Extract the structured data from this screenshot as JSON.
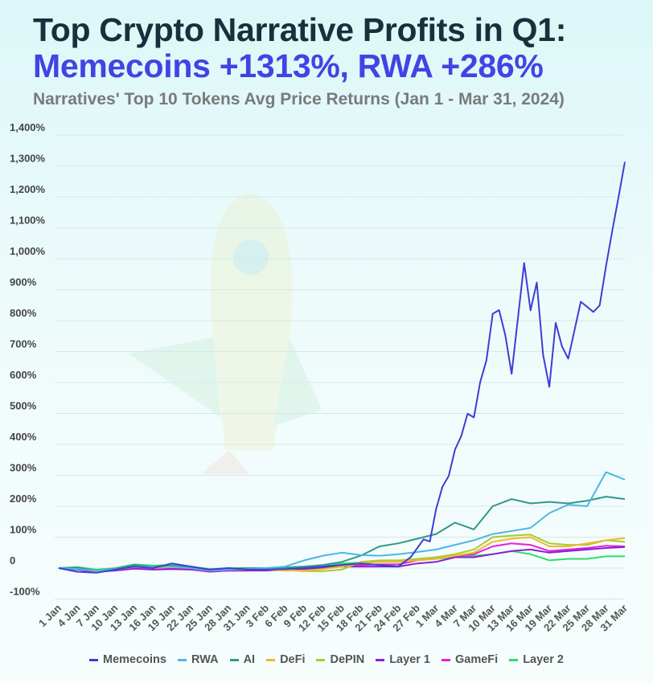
{
  "header": {
    "title_line1": "Top Crypto Narrative Profits in Q1:",
    "title_line2": "Memecoins +1313%, RWA +286%",
    "subtitle": "Narratives' Top 10 Tokens Avg Price Returns (Jan 1 - Mar 31, 2024)"
  },
  "colors": {
    "title": "#17303c",
    "highlight": "#4343e4",
    "subtitle": "#7a7a7a",
    "grid": "#d6e8ea"
  },
  "chart_data": {
    "type": "line",
    "title": "",
    "xlabel": "",
    "ylabel": "",
    "ylim": [
      -100,
      1400
    ],
    "yticks": [
      "-100%",
      "0",
      "100%",
      "200%",
      "300%",
      "400%",
      "500%",
      "600%",
      "700%",
      "800%",
      "900%",
      "1,000%",
      "1,100%",
      "1,200%",
      "1,300%",
      "1,400%"
    ],
    "ytick_values": [
      -100,
      0,
      100,
      200,
      300,
      400,
      500,
      600,
      700,
      800,
      900,
      1000,
      1100,
      1200,
      1300,
      1400
    ],
    "xticks": [
      "1 Jan",
      "4 Jan",
      "7 Jan",
      "10 Jan",
      "13 Jan",
      "16 Jan",
      "19 Jan",
      "22 Jan",
      "25 Jan",
      "28 Jan",
      "31 Jan",
      "3 Feb",
      "6 Feb",
      "9 Feb",
      "12 Feb",
      "15 Feb",
      "18 Feb",
      "21 Feb",
      "24 Feb",
      "27 Feb",
      "1 Mar",
      "4 Mar",
      "7 Mar",
      "10 Mar",
      "13 Mar",
      "16 Mar",
      "19 Mar",
      "22 Mar",
      "25 Mar",
      "28 Mar",
      "31 Mar"
    ],
    "grid": true,
    "legend_position": "bottom",
    "series": [
      {
        "name": "Memecoins",
        "color": "#3d3dd6",
        "x": [
          "1 Jan",
          "4 Jan",
          "7 Jan",
          "10 Jan",
          "13 Jan",
          "16 Jan",
          "19 Jan",
          "22 Jan",
          "25 Jan",
          "28 Jan",
          "31 Jan",
          "3 Feb",
          "6 Feb",
          "9 Feb",
          "12 Feb",
          "15 Feb",
          "18 Feb",
          "21 Feb",
          "24 Feb",
          "26 Feb",
          "28 Feb",
          "29 Feb",
          "1 Mar",
          "2 Mar",
          "3 Mar",
          "4 Mar",
          "5 Mar",
          "6 Mar",
          "7 Mar",
          "8 Mar",
          "9 Mar",
          "10 Mar",
          "11 Mar",
          "12 Mar",
          "13 Mar",
          "15 Mar",
          "16 Mar",
          "17 Mar",
          "18 Mar",
          "19 Mar",
          "20 Mar",
          "21 Mar",
          "22 Mar",
          "24 Mar",
          "26 Mar",
          "27 Mar",
          "28 Mar",
          "29 Mar",
          "30 Mar",
          "31 Mar"
        ],
        "values": [
          0,
          -12,
          -15,
          -5,
          5,
          0,
          15,
          5,
          -5,
          0,
          -5,
          -5,
          -3,
          0,
          5,
          10,
          15,
          10,
          5,
          36,
          93,
          86,
          191,
          263,
          298,
          383,
          427,
          499,
          487,
          601,
          672,
          822,
          834,
          752,
          628,
          986,
          833,
          923,
          690,
          586,
          793,
          717,
          677,
          861,
          828,
          849,
          975,
          1091,
          1200,
          1313
        ]
      },
      {
        "name": "RWA",
        "color": "#4db6e6",
        "values": [
          0,
          -3,
          -8,
          -3,
          5,
          3,
          5,
          0,
          -8,
          -5,
          -3,
          0,
          5,
          25,
          40,
          50,
          42,
          40,
          45,
          52,
          60,
          75,
          90,
          110,
          120,
          130,
          178,
          205,
          200,
          310,
          286
        ]
      },
      {
        "name": "AI",
        "color": "#2e9a8a",
        "values": [
          0,
          2,
          -8,
          -2,
          10,
          5,
          8,
          2,
          -5,
          -2,
          0,
          0,
          2,
          5,
          10,
          20,
          40,
          70,
          80,
          95,
          110,
          147,
          125,
          200,
          223,
          209,
          214,
          209,
          218,
          231,
          223
        ]
      },
      {
        "name": "DeFi",
        "color": "#f2b630",
        "values": [
          0,
          -2,
          -10,
          -5,
          3,
          0,
          3,
          0,
          -8,
          -5,
          -5,
          -5,
          -8,
          -8,
          -3,
          5,
          15,
          20,
          20,
          25,
          30,
          40,
          50,
          85,
          95,
          100,
          70,
          70,
          80,
          90,
          97
        ]
      },
      {
        "name": "DePIN",
        "color": "#a8cc2a",
        "values": [
          0,
          0,
          -8,
          -3,
          5,
          2,
          5,
          0,
          -8,
          -5,
          -3,
          -3,
          -5,
          -10,
          -10,
          -5,
          20,
          25,
          25,
          30,
          35,
          45,
          60,
          100,
          105,
          108,
          80,
          75,
          75,
          90,
          85
        ]
      },
      {
        "name": "Layer 1",
        "color": "#8a1fd6",
        "values": [
          0,
          -5,
          -12,
          -8,
          -2,
          -5,
          -3,
          -5,
          -10,
          -8,
          -8,
          -8,
          -6,
          -3,
          0,
          5,
          5,
          5,
          5,
          15,
          20,
          35,
          35,
          45,
          55,
          60,
          50,
          55,
          60,
          65,
          68
        ]
      },
      {
        "name": "GameFi",
        "color": "#e81fd6",
        "values": [
          0,
          -4,
          -10,
          -6,
          0,
          -4,
          -2,
          -4,
          -12,
          -8,
          -8,
          -6,
          -5,
          -3,
          2,
          8,
          10,
          12,
          12,
          25,
          35,
          40,
          45,
          70,
          80,
          75,
          55,
          60,
          65,
          72,
          70
        ]
      },
      {
        "name": "Layer 2",
        "color": "#2edc6a",
        "values": [
          0,
          3,
          -5,
          0,
          12,
          8,
          10,
          5,
          -3,
          0,
          0,
          0,
          2,
          5,
          8,
          15,
          18,
          20,
          20,
          25,
          30,
          35,
          40,
          45,
          55,
          45,
          25,
          30,
          30,
          38,
          38
        ]
      }
    ]
  }
}
